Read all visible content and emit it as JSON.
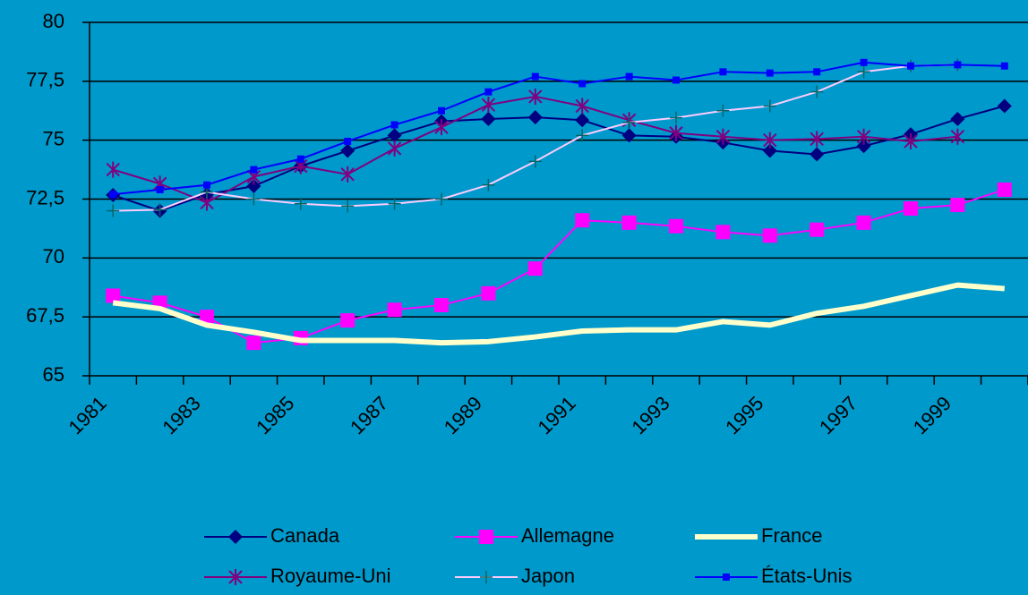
{
  "chart_data": {
    "type": "line",
    "categories": [
      "1981",
      null,
      "1983",
      null,
      "1985",
      null,
      "1987",
      null,
      "1989",
      null,
      "1991",
      null,
      "1993",
      null,
      "1995",
      null,
      "1997",
      null,
      "1999",
      null
    ],
    "series": [
      {
        "name": "Canada",
        "color": "#000080",
        "marker": "diamond",
        "values": [
          72.67,
          72.0,
          72.7,
          73.05,
          73.9,
          74.55,
          75.2,
          75.8,
          75.9,
          75.97,
          75.85,
          75.2,
          75.15,
          74.9,
          74.55,
          74.4,
          74.75,
          75.25,
          75.9,
          76.45
        ]
      },
      {
        "name": "Allemagne",
        "color": "#ff00ff",
        "marker": "square",
        "values": [
          68.4,
          68.1,
          67.5,
          66.4,
          66.6,
          67.35,
          67.8,
          68.0,
          68.5,
          69.55,
          71.6,
          71.5,
          71.35,
          71.1,
          70.95,
          71.2,
          71.5,
          72.1,
          72.25,
          72.9
        ]
      },
      {
        "name": "France",
        "color": "#ffffcc",
        "marker": "none",
        "values": [
          68.1,
          67.85,
          67.15,
          66.85,
          66.5,
          66.5,
          66.5,
          66.4,
          66.45,
          66.65,
          66.9,
          66.95,
          66.95,
          67.3,
          67.15,
          67.65,
          67.95,
          68.4,
          68.85,
          68.7
        ]
      },
      {
        "name": "Royaume-Uni",
        "color": "#800080",
        "marker": "star",
        "values": [
          73.75,
          73.15,
          72.35,
          73.45,
          73.9,
          73.55,
          74.65,
          75.55,
          76.5,
          76.85,
          76.45,
          75.85,
          75.3,
          75.15,
          75.0,
          75.05,
          75.15,
          74.95,
          75.15,
          null
        ]
      },
      {
        "name": "Japon",
        "color": "#ffccff",
        "marker": "plus",
        "values": [
          72.0,
          72.05,
          72.8,
          72.5,
          72.3,
          72.2,
          72.3,
          72.5,
          73.1,
          74.1,
          75.2,
          75.75,
          75.95,
          76.25,
          76.45,
          77.05,
          77.9,
          78.15,
          78.2,
          null
        ]
      },
      {
        "name": "États-Unis",
        "color": "#0000ff",
        "marker": "smallsquare",
        "values": [
          72.7,
          72.9,
          73.1,
          73.75,
          74.2,
          74.95,
          75.65,
          76.25,
          77.05,
          77.7,
          77.4,
          77.7,
          77.55,
          77.9,
          77.85,
          77.9,
          78.3,
          78.15,
          78.2,
          78.15
        ]
      }
    ],
    "ylim": [
      65,
      80
    ],
    "yticks": [
      65,
      {
        "value": 67.5,
        "label": "67,5"
      },
      70,
      {
        "value": 72.5,
        "label": "72,5"
      },
      75,
      {
        "value": 77.5,
        "label": "77,5"
      },
      80
    ],
    "grid": true,
    "legend": "bottom"
  }
}
